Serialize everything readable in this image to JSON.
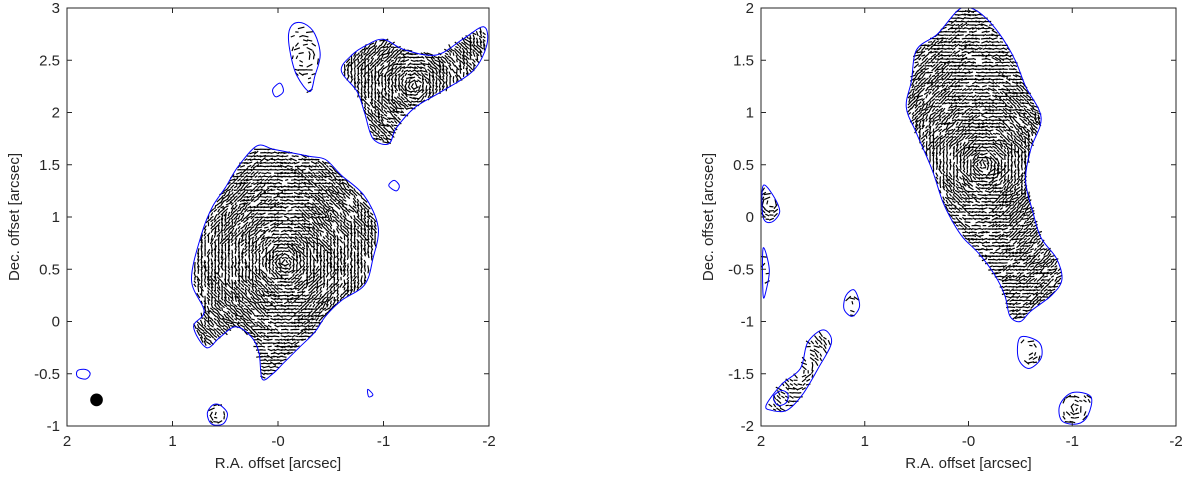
{
  "chart_data": [
    {
      "type": "map",
      "panel": "left",
      "xlabel": "R.A. offset [arcsec]",
      "ylabel": "Dec. offset [arcsec]",
      "xlim": [
        2,
        -2
      ],
      "ylim": [
        -1,
        3
      ],
      "x_reversed": true,
      "xticks": [
        2,
        1,
        0,
        -1,
        -2
      ],
      "xtick_labels": [
        "2",
        "1",
        "-0",
        "-1",
        "-2"
      ],
      "yticks": [
        -1,
        -0.5,
        0,
        0.5,
        1,
        1.5,
        2,
        2.5,
        3
      ],
      "ytick_labels": [
        "-1",
        "-0.5",
        "0",
        "0.5",
        "1",
        "1.5",
        "2",
        "2.5",
        "3"
      ],
      "grid": false,
      "contour_color": "#0000ff",
      "vector_color": "#000000",
      "beam": {
        "x": 1.72,
        "y": -0.75,
        "diameter": 0.12
      },
      "regions": [
        {
          "pts": [
            [
              0.8,
              -0.05
            ],
            [
              0.7,
              0.1
            ],
            [
              0.82,
              0.4
            ],
            [
              0.72,
              0.85
            ],
            [
              0.62,
              1.1
            ],
            [
              0.5,
              1.28
            ],
            [
              0.38,
              1.48
            ],
            [
              0.2,
              1.68
            ],
            [
              0.05,
              1.65
            ],
            [
              -0.1,
              1.62
            ],
            [
              -0.3,
              1.58
            ],
            [
              -0.45,
              1.55
            ],
            [
              -0.6,
              1.4
            ],
            [
              -0.82,
              1.2
            ],
            [
              -0.95,
              0.9
            ],
            [
              -0.9,
              0.6
            ],
            [
              -0.82,
              0.35
            ],
            [
              -0.6,
              0.2
            ],
            [
              -0.45,
              0.05
            ],
            [
              -0.35,
              -0.1
            ],
            [
              -0.2,
              -0.25
            ],
            [
              -0.05,
              -0.4
            ],
            [
              0.05,
              -0.5
            ],
            [
              0.15,
              -0.55
            ],
            [
              0.18,
              -0.3
            ],
            [
              0.25,
              -0.15
            ],
            [
              0.4,
              -0.05
            ],
            [
              0.55,
              -0.15
            ],
            [
              0.68,
              -0.25
            ]
          ],
          "density": 1.0
        },
        {
          "pts": [
            [
              -0.7,
              2.55
            ],
            [
              -0.6,
              2.4
            ],
            [
              -0.75,
              2.2
            ],
            [
              -0.82,
              2.0
            ],
            [
              -0.9,
              1.75
            ],
            [
              -1.05,
              1.7
            ],
            [
              -1.12,
              1.85
            ],
            [
              -1.3,
              2.05
            ],
            [
              -1.55,
              2.2
            ],
            [
              -1.85,
              2.4
            ],
            [
              -1.98,
              2.65
            ],
            [
              -1.95,
              2.82
            ],
            [
              -1.75,
              2.7
            ],
            [
              -1.5,
              2.55
            ],
            [
              -1.2,
              2.6
            ],
            [
              -1.0,
              2.7
            ],
            [
              -0.85,
              2.65
            ]
          ],
          "density": 1.0
        },
        {
          "pts": [
            [
              -0.25,
              2.85
            ],
            [
              -0.35,
              2.75
            ],
            [
              -0.4,
              2.55
            ],
            [
              -0.35,
              2.35
            ],
            [
              -0.3,
              2.2
            ],
            [
              -0.18,
              2.35
            ],
            [
              -0.12,
              2.55
            ],
            [
              -0.1,
              2.75
            ],
            [
              -0.15,
              2.85
            ]
          ],
          "density": 0.5
        },
        {
          "pts": [
            [
              0.55,
              -0.8
            ],
            [
              0.48,
              -0.88
            ],
            [
              0.52,
              -0.98
            ],
            [
              0.63,
              -0.98
            ],
            [
              0.67,
              -0.88
            ],
            [
              0.62,
              -0.8
            ]
          ],
          "density": 0.7
        }
      ],
      "extra_contours": [
        [
          [
            1.78,
            -0.5
          ],
          [
            1.82,
            -0.46
          ],
          [
            1.9,
            -0.47
          ],
          [
            1.9,
            -0.53
          ],
          [
            1.82,
            -0.55
          ]
        ],
        [
          [
            -0.02,
            2.28
          ],
          [
            0.05,
            2.22
          ],
          [
            0.02,
            2.15
          ],
          [
            -0.05,
            2.2
          ]
        ],
        [
          [
            -0.85,
            -0.65
          ],
          [
            -0.9,
            -0.7
          ],
          [
            -0.86,
            -0.72
          ]
        ],
        [
          [
            -1.1,
            1.35
          ],
          [
            -1.15,
            1.3
          ],
          [
            -1.12,
            1.25
          ],
          [
            -1.05,
            1.3
          ]
        ]
      ]
    },
    {
      "type": "map",
      "panel": "right",
      "xlabel": "R.A. offset [arcsec]",
      "ylabel": "Dec. offset [arcsec]",
      "xlim": [
        2,
        -2
      ],
      "ylim": [
        -2,
        2
      ],
      "x_reversed": true,
      "xticks": [
        2,
        1,
        0,
        -1,
        -2
      ],
      "xtick_labels": [
        "2",
        "1",
        "-0",
        "-1",
        "-2"
      ],
      "yticks": [
        -2,
        -1.5,
        -1,
        -0.5,
        0,
        0.5,
        1,
        1.5,
        2
      ],
      "ytick_labels": [
        "-2",
        "-1.5",
        "-1",
        "-0.5",
        "0",
        "0.5",
        "1",
        "1.5",
        "2"
      ],
      "grid": false,
      "contour_color": "#0000ff",
      "vector_color": "#000000",
      "regions": [
        {
          "pts": [
            [
              0.1,
              1.98
            ],
            [
              0.3,
              1.75
            ],
            [
              0.5,
              1.6
            ],
            [
              0.55,
              1.3
            ],
            [
              0.6,
              1.05
            ],
            [
              0.5,
              0.8
            ],
            [
              0.35,
              0.45
            ],
            [
              0.25,
              0.15
            ],
            [
              0.15,
              -0.05
            ],
            [
              0.05,
              -0.2
            ],
            [
              -0.1,
              -0.35
            ],
            [
              -0.25,
              -0.55
            ],
            [
              -0.35,
              -0.75
            ],
            [
              -0.4,
              -0.95
            ],
            [
              -0.5,
              -1.0
            ],
            [
              -0.6,
              -0.9
            ],
            [
              -0.8,
              -0.75
            ],
            [
              -0.9,
              -0.6
            ],
            [
              -0.85,
              -0.4
            ],
            [
              -0.7,
              -0.2
            ],
            [
              -0.62,
              0.05
            ],
            [
              -0.55,
              0.35
            ],
            [
              -0.6,
              0.65
            ],
            [
              -0.7,
              0.95
            ],
            [
              -0.55,
              1.25
            ],
            [
              -0.45,
              1.5
            ],
            [
              -0.3,
              1.75
            ],
            [
              -0.15,
              1.92
            ],
            [
              -0.02,
              2.0
            ]
          ],
          "density": 1.0
        },
        {
          "pts": [
            [
              1.98,
              0.3
            ],
            [
              1.88,
              0.2
            ],
            [
              1.82,
              0.05
            ],
            [
              1.9,
              -0.05
            ],
            [
              1.98,
              0.0
            ]
          ],
          "density": 0.8
        },
        {
          "pts": [
            [
              1.98,
              -0.3
            ],
            [
              1.92,
              -0.5
            ],
            [
              1.95,
              -0.7
            ],
            [
              1.98,
              -0.75
            ]
          ],
          "density": 0.4
        },
        {
          "pts": [
            [
              1.95,
              -1.8
            ],
            [
              1.8,
              -1.6
            ],
            [
              1.62,
              -1.45
            ],
            [
              1.55,
              -1.2
            ],
            [
              1.4,
              -1.08
            ],
            [
              1.32,
              -1.2
            ],
            [
              1.45,
              -1.45
            ],
            [
              1.6,
              -1.7
            ],
            [
              1.75,
              -1.85
            ],
            [
              1.9,
              -1.85
            ]
          ],
          "density": 0.8
        },
        {
          "pts": [
            [
              1.1,
              -0.7
            ],
            [
              1.05,
              -0.85
            ],
            [
              1.12,
              -0.95
            ],
            [
              1.2,
              -0.88
            ],
            [
              1.18,
              -0.75
            ]
          ],
          "density": 0.5
        },
        {
          "pts": [
            [
              -0.5,
              -1.15
            ],
            [
              -0.48,
              -1.35
            ],
            [
              -0.58,
              -1.45
            ],
            [
              -0.7,
              -1.35
            ],
            [
              -0.68,
              -1.2
            ]
          ],
          "density": 0.7
        },
        {
          "pts": [
            [
              -0.9,
              -1.95
            ],
            [
              -0.88,
              -1.8
            ],
            [
              -1.0,
              -1.68
            ],
            [
              -1.18,
              -1.72
            ],
            [
              -1.15,
              -1.9
            ],
            [
              -1.05,
              -1.98
            ]
          ],
          "density": 0.7
        }
      ],
      "extra_contours": [
        [
          [
            1.74,
            -1.7
          ],
          [
            1.8,
            -1.66
          ],
          [
            1.88,
            -1.72
          ],
          [
            1.84,
            -1.8
          ],
          [
            1.76,
            -1.78
          ]
        ]
      ]
    }
  ]
}
